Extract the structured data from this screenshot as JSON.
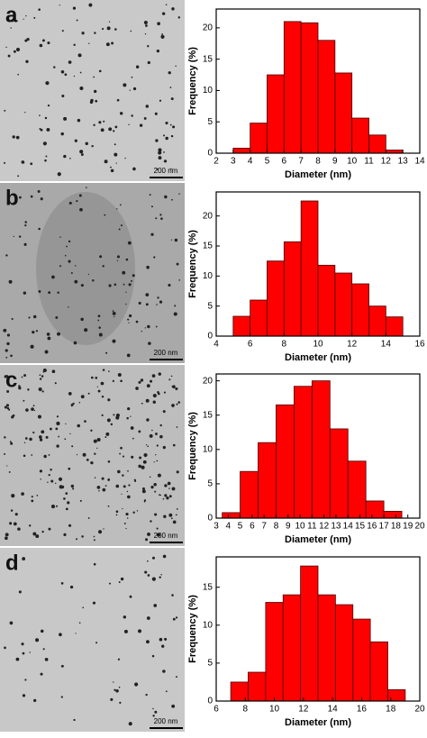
{
  "panels": [
    {
      "label": "a",
      "scale_bar": "200 nm"
    },
    {
      "label": "b",
      "scale_bar": "200 nm"
    },
    {
      "label": "c",
      "scale_bar": "200 nm"
    },
    {
      "label": "d",
      "scale_bar": "200 nm"
    }
  ],
  "chart_data": [
    {
      "type": "histogram",
      "xlabel": "Diameter (nm)",
      "ylabel": "Frequency (%)",
      "color": "#ff0000",
      "bins": [
        3,
        4,
        5,
        6,
        7,
        8,
        9,
        10,
        11,
        12,
        13
      ],
      "values": [
        0.8,
        4.8,
        12.5,
        21,
        20.8,
        18,
        12.8,
        5.6,
        2.9,
        0.5
      ],
      "xlim": [
        2,
        14
      ],
      "xticks": [
        2,
        3,
        4,
        5,
        6,
        7,
        8,
        9,
        10,
        11,
        12,
        13,
        14
      ],
      "ylim": [
        0,
        23
      ],
      "yticks": [
        0,
        5,
        10,
        15,
        20
      ]
    },
    {
      "type": "histogram",
      "xlabel": "Diameter (nm)",
      "ylabel": "Frequency (%)",
      "color": "#ff0000",
      "bins": [
        5,
        6,
        7,
        8,
        9,
        10,
        11,
        12,
        13,
        14,
        15
      ],
      "values": [
        3.3,
        6,
        12.5,
        15.7,
        22.5,
        11.8,
        10.5,
        8.7,
        5,
        3.2
      ],
      "xlim": [
        4,
        16
      ],
      "xticks": [
        4,
        6,
        8,
        10,
        12,
        14,
        16
      ],
      "ylim": [
        0,
        24
      ],
      "yticks": [
        0,
        5,
        10,
        15,
        20
      ]
    },
    {
      "type": "histogram",
      "xlabel": "Diameter (nm)",
      "ylabel": "Frequency (%)",
      "color": "#ff0000",
      "bins": [
        3.5,
        5,
        6.5,
        8,
        9.5,
        11,
        12.5,
        14,
        15.5,
        17,
        18.5
      ],
      "values": [
        0.8,
        6.8,
        11,
        16.5,
        19.2,
        20,
        13,
        8.3,
        2.5,
        1
      ],
      "xlim": [
        3,
        20
      ],
      "xticks": [
        3,
        4,
        5,
        6,
        7,
        8,
        9,
        10,
        11,
        12,
        13,
        14,
        15,
        16,
        17,
        18,
        19,
        20
      ],
      "ylim": [
        0,
        21
      ],
      "yticks": [
        0,
        5,
        10,
        15,
        20
      ]
    },
    {
      "type": "histogram",
      "xlabel": "Diameter (nm)",
      "ylabel": "Frequency (%)",
      "color": "#ff0000",
      "bins": [
        7,
        8.2,
        9.4,
        10.6,
        11.8,
        13,
        14.2,
        15.4,
        16.6,
        17.8,
        19
      ],
      "values": [
        2.5,
        3.8,
        13,
        14,
        17.8,
        14,
        12.7,
        10.8,
        7.8,
        1.5
      ],
      "xlim": [
        6,
        20
      ],
      "xticks": [
        6,
        8,
        10,
        12,
        14,
        16,
        18,
        20
      ],
      "ylim": [
        0,
        19
      ],
      "yticks": [
        0,
        5,
        10,
        15
      ]
    }
  ]
}
